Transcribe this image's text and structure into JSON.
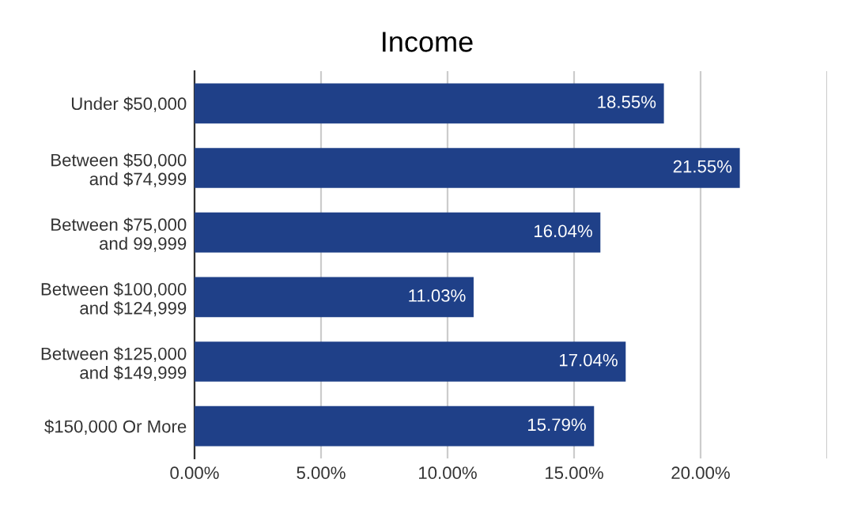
{
  "chart_data": {
    "type": "bar",
    "title": "Income",
    "orientation": "horizontal",
    "categories": [
      "Under $50,000",
      "Between $50,000\nand $74,999",
      "Between $75,000\nand 99,999",
      "Between $100,000\nand $124,999",
      "Between $125,000\nand $149,999",
      "$150,000 Or More"
    ],
    "values": [
      18.55,
      21.55,
      16.04,
      11.03,
      17.04,
      15.79
    ],
    "value_labels": [
      "18.55%",
      "21.55%",
      "16.04%",
      "11.03%",
      "17.04%",
      "15.79%"
    ],
    "color": "#1f4088",
    "xlim": [
      0,
      25
    ],
    "xticks": [
      {
        "value": 0,
        "label": "0.00%"
      },
      {
        "value": 5,
        "label": "5.00%"
      },
      {
        "value": 10,
        "label": "10.00%"
      },
      {
        "value": 15,
        "label": "15.00%"
      },
      {
        "value": 20,
        "label": "20.00%"
      },
      {
        "value": 25,
        "label": null
      }
    ],
    "grid": "x"
  }
}
